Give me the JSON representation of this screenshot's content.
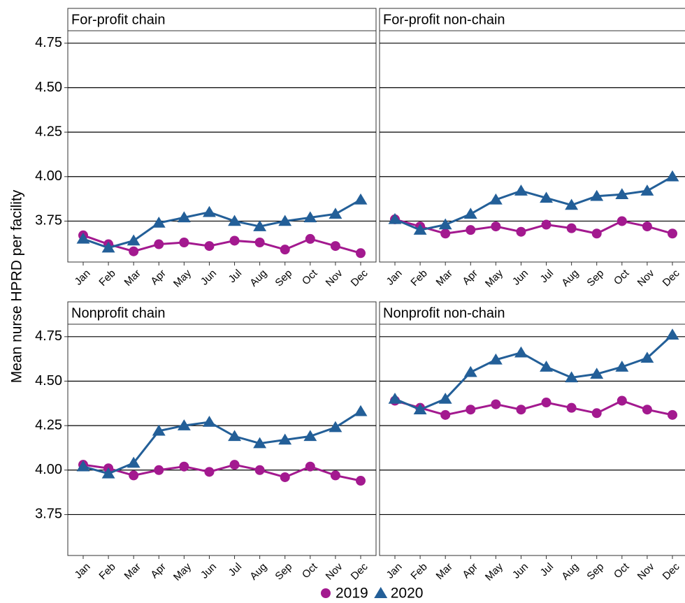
{
  "chart_data": {
    "type": "line",
    "ylabel": "Mean nurse HPRD per facility",
    "categories": [
      "Jan",
      "Feb",
      "Mar",
      "Apr",
      "May",
      "Jun",
      "Jul",
      "Aug",
      "Sep",
      "Oct",
      "Nov",
      "Dec"
    ],
    "panels": [
      "For-profit chain",
      "For-profit non-chain",
      "Nonprofit chain",
      "Nonprofit non-chain"
    ],
    "ylim": [
      3.52,
      4.82
    ],
    "yticks": [
      3.75,
      {
        "value": 4,
        "label": "4.00"
      },
      4.25,
      {
        "value": 4.5,
        "label": "4.50"
      },
      4.75
    ],
    "grid": true,
    "series": [
      {
        "name": "2019",
        "color": "#a3198f",
        "marker": "circle",
        "values": [
          [
            3.67,
            3.62,
            3.58,
            3.62,
            3.63,
            3.61,
            3.64,
            3.63,
            3.59,
            3.65,
            3.61,
            3.57
          ],
          [
            3.76,
            3.72,
            3.68,
            3.7,
            3.72,
            3.69,
            3.73,
            3.71,
            3.68,
            3.75,
            3.72,
            3.68
          ],
          [
            4.03,
            4.01,
            3.97,
            4.0,
            4.02,
            3.99,
            4.03,
            4.0,
            3.96,
            4.02,
            3.97,
            3.94
          ],
          [
            4.39,
            4.35,
            4.31,
            4.34,
            4.37,
            4.34,
            4.38,
            4.35,
            4.32,
            4.39,
            4.34,
            4.31
          ]
        ]
      },
      {
        "name": "2020",
        "color": "#235f98",
        "marker": "triangle",
        "values": [
          [
            3.65,
            3.6,
            3.64,
            3.74,
            3.77,
            3.8,
            3.75,
            3.72,
            3.75,
            3.77,
            3.79,
            3.87
          ],
          [
            3.76,
            3.7,
            3.73,
            3.79,
            3.87,
            3.92,
            3.88,
            3.84,
            3.89,
            3.9,
            3.92,
            4.0
          ],
          [
            4.02,
            3.98,
            4.04,
            4.22,
            4.25,
            4.27,
            4.19,
            4.15,
            4.17,
            4.19,
            4.24,
            4.33
          ],
          [
            4.4,
            4.34,
            4.4,
            4.55,
            4.62,
            4.66,
            4.58,
            4.52,
            4.54,
            4.58,
            4.63,
            4.76
          ]
        ]
      }
    ]
  }
}
